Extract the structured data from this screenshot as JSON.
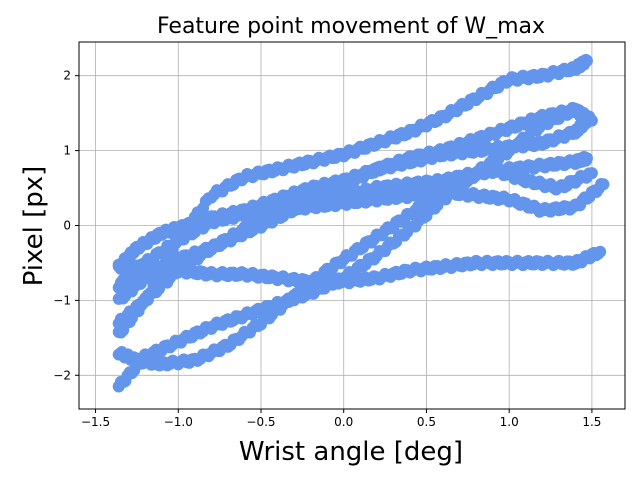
{
  "chart_data": {
    "type": "scatter",
    "title": "Feature point movement of W_max",
    "xlabel": "Wrist angle [deg]",
    "ylabel": "Pixel [px]",
    "xlim": [
      -1.6,
      1.7
    ],
    "ylim": [
      -2.45,
      2.45
    ],
    "xticks": [
      -1.5,
      -1.0,
      -0.5,
      0.0,
      0.5,
      1.0,
      1.5
    ],
    "xtick_labels": [
      "−1.5",
      "−1.0",
      "−0.5",
      "0.0",
      "0.5",
      "1.0",
      "1.5"
    ],
    "yticks": [
      -2,
      -1,
      0,
      1,
      2
    ],
    "ytick_labels": [
      "−2",
      "−1",
      "0",
      "1",
      "2"
    ],
    "grid": true,
    "color": "#6495ED",
    "series": [
      {
        "x": [
          -1.36,
          -1.2,
          -1.0,
          -0.8,
          -0.6,
          -0.4,
          -0.2,
          0.0,
          0.2,
          0.4,
          0.6,
          0.8,
          1.0,
          1.2,
          1.4,
          1.47
        ],
        "y": [
          -2.15,
          -1.75,
          -1.55,
          -1.35,
          -1.2,
          -1.05,
          -0.9,
          -0.7,
          -0.4,
          -0.05,
          0.35,
          0.7,
          1.0,
          1.35,
          1.55,
          1.4
        ]
      },
      {
        "x": [
          -1.36,
          -1.25,
          -1.1,
          -0.95,
          -0.8,
          -0.6,
          -0.4,
          -0.2,
          0.0,
          0.2,
          0.4,
          0.6,
          0.8,
          1.0,
          1.2,
          1.4,
          1.47
        ],
        "y": [
          -0.55,
          -0.3,
          -0.1,
          0.0,
          0.1,
          0.2,
          0.35,
          0.5,
          0.6,
          0.75,
          0.85,
          0.95,
          1.0,
          1.05,
          1.1,
          1.25,
          1.4
        ]
      },
      {
        "x": [
          -1.36,
          -1.2,
          -1.0,
          -0.8,
          -0.6,
          -0.4,
          -0.2,
          0.0,
          0.2,
          0.4,
          0.6,
          0.8,
          1.0,
          1.2,
          1.4,
          1.47
        ],
        "y": [
          -1.45,
          -1.0,
          -0.6,
          -0.3,
          -0.05,
          0.15,
          0.3,
          0.4,
          0.5,
          0.55,
          0.6,
          0.7,
          0.75,
          0.8,
          0.85,
          0.9
        ]
      },
      {
        "x": [
          -1.36,
          -1.2,
          -1.0,
          -0.8,
          -0.6,
          -0.4,
          -0.2,
          0.0,
          0.2,
          0.4,
          0.6,
          0.8,
          1.0,
          1.2,
          1.4,
          1.55
        ],
        "y": [
          -0.55,
          -0.55,
          -0.6,
          -0.65,
          -0.65,
          -0.7,
          -0.75,
          -0.75,
          -0.7,
          -0.6,
          -0.55,
          -0.5,
          -0.5,
          -0.5,
          -0.5,
          -0.35
        ]
      },
      {
        "x": [
          -1.36,
          -1.25,
          -1.1,
          -0.9,
          -0.7,
          -0.5,
          -0.3,
          -0.1,
          0.1,
          0.3,
          0.5,
          0.7,
          0.9,
          1.1,
          1.3,
          1.5
        ],
        "y": [
          -1.7,
          -1.8,
          -1.85,
          -1.8,
          -1.6,
          -1.3,
          -0.95,
          -0.6,
          -0.3,
          0.0,
          0.3,
          0.6,
          0.75,
          0.6,
          0.5,
          0.7
        ]
      },
      {
        "x": [
          -1.36,
          -1.2,
          -1.0,
          -0.8,
          -0.6,
          -0.4,
          -0.2,
          0.0,
          0.2,
          0.4,
          0.6,
          0.8,
          1.0,
          1.2,
          1.4,
          1.57
        ],
        "y": [
          -0.8,
          -0.5,
          -0.2,
          0.05,
          0.15,
          0.2,
          0.25,
          0.3,
          0.35,
          0.4,
          0.45,
          0.4,
          0.35,
          0.2,
          0.25,
          0.55
        ]
      },
      {
        "x": [
          -1.36,
          -1.2,
          -1.0,
          -0.8,
          -0.6,
          -0.4,
          -0.2,
          0.0,
          0.2,
          0.4,
          0.6,
          0.8,
          1.0,
          1.2,
          1.4,
          1.47
        ],
        "y": [
          -1.3,
          -1.0,
          -0.2,
          0.4,
          0.65,
          0.75,
          0.85,
          0.95,
          1.1,
          1.25,
          1.45,
          1.7,
          1.95,
          2.0,
          2.1,
          2.2
        ]
      },
      {
        "x": [
          -1.36,
          -1.2,
          -1.0,
          -0.8,
          -0.6,
          -0.4,
          -0.2,
          0.0,
          0.2,
          0.4,
          0.6,
          0.8,
          1.0,
          1.2,
          1.4,
          1.5
        ],
        "y": [
          -1.0,
          -0.7,
          -0.45,
          -0.3,
          -0.1,
          0.1,
          0.35,
          0.55,
          0.75,
          0.9,
          1.0,
          1.15,
          1.3,
          1.45,
          1.55,
          1.4
        ]
      }
    ]
  }
}
